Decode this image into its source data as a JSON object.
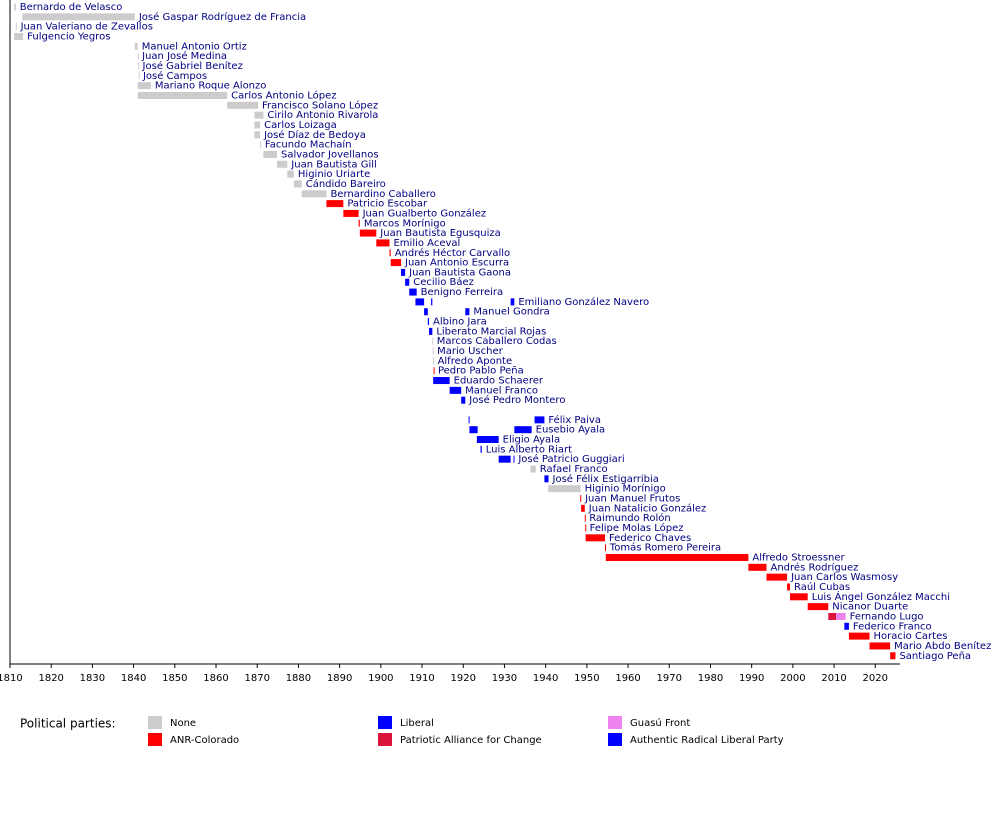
{
  "chart_data": {
    "type": "timeline",
    "xlim": [
      1810,
      2026
    ],
    "xticks": [
      1810,
      1820,
      1830,
      1840,
      1850,
      1860,
      1870,
      1880,
      1890,
      1900,
      1910,
      1920,
      1930,
      1940,
      1950,
      1960,
      1970,
      1980,
      1990,
      2000,
      2010,
      2020
    ],
    "legend_title": "Political parties:",
    "parties": [
      {
        "name": "None",
        "color": "#cccccc"
      },
      {
        "name": "ANR-Colorado",
        "color": "#ff0000"
      },
      {
        "name": "Liberal",
        "color": "#0000ff"
      },
      {
        "name": "Patriotic Alliance for Change",
        "color": "#dc143c"
      },
      {
        "name": "Guasú Front",
        "color": "#ee82ee"
      },
      {
        "name": "Authentic Radical Liberal Party",
        "color": "#0000ff"
      }
    ],
    "rows": [
      {
        "name": "Bernardo de Velasco",
        "terms": [
          {
            "start": 1811.0,
            "end": 1811.4,
            "party": "None"
          }
        ]
      },
      {
        "name": "José Gaspar Rodríguez de Francia",
        "terms": [
          {
            "start": 1813.0,
            "end": 1840.3,
            "party": "None"
          }
        ]
      },
      {
        "name": "Juan Valeriano de Zevallos",
        "terms": [
          {
            "start": 1811.4,
            "end": 1811.6,
            "party": "None"
          }
        ]
      },
      {
        "name": "Fulgencio Yegros",
        "terms": [
          {
            "start": 1811.0,
            "end": 1813.2,
            "party": "None"
          }
        ]
      },
      {
        "name": "Manuel Antonio Ortiz",
        "terms": [
          {
            "start": 1840.3,
            "end": 1841.0,
            "party": "None"
          }
        ]
      },
      {
        "name": "Juan José Medina",
        "terms": [
          {
            "start": 1841.0,
            "end": 1841.1,
            "party": "None"
          }
        ]
      },
      {
        "name": "José Gabriel Benítez",
        "terms": [
          {
            "start": 1841.1,
            "end": 1841.2,
            "party": "None"
          }
        ]
      },
      {
        "name": "José Campos",
        "terms": [
          {
            "start": 1841.2,
            "end": 1841.3,
            "party": "None"
          }
        ]
      },
      {
        "name": "Mariano Roque Alonzo",
        "terms": [
          {
            "start": 1841.0,
            "end": 1844.2,
            "party": "None"
          }
        ]
      },
      {
        "name": "Carlos Antonio López",
        "terms": [
          {
            "start": 1841.0,
            "end": 1862.7,
            "party": "None"
          }
        ]
      },
      {
        "name": "Francisco Solano López",
        "terms": [
          {
            "start": 1862.7,
            "end": 1870.2,
            "party": "None"
          }
        ]
      },
      {
        "name": "Cirilo Antonio Rivarola",
        "terms": [
          {
            "start": 1869.3,
            "end": 1871.5,
            "party": "None"
          }
        ]
      },
      {
        "name": "Carlos Loizaga",
        "terms": [
          {
            "start": 1869.3,
            "end": 1870.7,
            "party": "None"
          }
        ]
      },
      {
        "name": "José Díaz de Bedoya",
        "terms": [
          {
            "start": 1869.3,
            "end": 1870.7,
            "party": "None"
          }
        ]
      },
      {
        "name": "Facundo Machaín",
        "terms": [
          {
            "start": 1870.7,
            "end": 1870.9,
            "party": "None"
          }
        ]
      },
      {
        "name": "Salvador Jovellanos",
        "terms": [
          {
            "start": 1871.5,
            "end": 1874.8,
            "party": "None"
          }
        ]
      },
      {
        "name": "Juan Bautista Gill",
        "terms": [
          {
            "start": 1874.8,
            "end": 1877.3,
            "party": "None"
          }
        ]
      },
      {
        "name": "Higinio Uriarte",
        "terms": [
          {
            "start": 1877.3,
            "end": 1878.9,
            "party": "None"
          }
        ]
      },
      {
        "name": "Cándido Bareiro",
        "terms": [
          {
            "start": 1878.9,
            "end": 1880.8,
            "party": "None"
          }
        ]
      },
      {
        "name": "Bernardino Caballero",
        "terms": [
          {
            "start": 1880.8,
            "end": 1886.8,
            "party": "None"
          }
        ]
      },
      {
        "name": "Patricio Escobar",
        "terms": [
          {
            "start": 1886.8,
            "end": 1890.9,
            "party": "ANR-Colorado"
          }
        ]
      },
      {
        "name": "Juan Gualberto González",
        "terms": [
          {
            "start": 1890.9,
            "end": 1894.6,
            "party": "ANR-Colorado"
          }
        ]
      },
      {
        "name": "Marcos Morínigo",
        "terms": [
          {
            "start": 1894.6,
            "end": 1894.9,
            "party": "ANR-Colorado"
          }
        ]
      },
      {
        "name": "Juan Bautista Egusquiza",
        "terms": [
          {
            "start": 1894.9,
            "end": 1898.9,
            "party": "ANR-Colorado"
          }
        ]
      },
      {
        "name": "Emilio Aceval",
        "terms": [
          {
            "start": 1898.9,
            "end": 1902.1,
            "party": "ANR-Colorado"
          }
        ]
      },
      {
        "name": "Andrés Héctor Carvallo",
        "terms": [
          {
            "start": 1902.1,
            "end": 1902.4,
            "party": "ANR-Colorado"
          }
        ]
      },
      {
        "name": "Juan Antonio Escurra",
        "terms": [
          {
            "start": 1902.4,
            "end": 1904.9,
            "party": "ANR-Colorado"
          }
        ]
      },
      {
        "name": "Juan Bautista Gaona",
        "terms": [
          {
            "start": 1904.9,
            "end": 1905.9,
            "party": "Liberal"
          }
        ]
      },
      {
        "name": "Cecilio Báez",
        "terms": [
          {
            "start": 1905.9,
            "end": 1906.9,
            "party": "Liberal"
          }
        ]
      },
      {
        "name": "Benigno Ferreira",
        "terms": [
          {
            "start": 1906.9,
            "end": 1908.7,
            "party": "Liberal"
          }
        ]
      },
      {
        "name": "Emiliano González Navero",
        "terms": [
          {
            "start": 1908.4,
            "end": 1910.5,
            "party": "Liberal"
          },
          {
            "start": 1912.2,
            "end": 1912.5,
            "party": "Liberal"
          },
          {
            "start": 1931.5,
            "end": 1932.4,
            "party": "Liberal"
          }
        ]
      },
      {
        "name": "Manuel Gondra",
        "terms": [
          {
            "start": 1910.5,
            "end": 1911.4,
            "party": "Liberal"
          },
          {
            "start": 1920.5,
            "end": 1921.5,
            "party": "Liberal"
          }
        ]
      },
      {
        "name": "Albino Jara",
        "terms": [
          {
            "start": 1911.4,
            "end": 1911.7,
            "party": "Liberal"
          }
        ]
      },
      {
        "name": "Liberato Marcial Rojas",
        "terms": [
          {
            "start": 1911.7,
            "end": 1912.5,
            "party": "Liberal"
          }
        ]
      },
      {
        "name": "Marcos Caballero Codas",
        "terms": [
          {
            "start": 1912.5,
            "end": 1912.6,
            "party": "None"
          }
        ]
      },
      {
        "name": "Mario Uscher",
        "terms": [
          {
            "start": 1912.6,
            "end": 1912.7,
            "party": "None"
          }
        ]
      },
      {
        "name": "Alfredo Aponte",
        "terms": [
          {
            "start": 1912.7,
            "end": 1912.8,
            "party": "None"
          }
        ]
      },
      {
        "name": "Pedro Pablo Peña",
        "terms": [
          {
            "start": 1912.8,
            "end": 1912.9,
            "party": "ANR-Colorado"
          }
        ]
      },
      {
        "name": "Eduardo Schaerer",
        "terms": [
          {
            "start": 1912.7,
            "end": 1916.7,
            "party": "Liberal"
          }
        ]
      },
      {
        "name": "Manuel Franco",
        "terms": [
          {
            "start": 1916.7,
            "end": 1919.5,
            "party": "Liberal"
          }
        ]
      },
      {
        "name": "José Pedro Montero",
        "terms": [
          {
            "start": 1919.5,
            "end": 1920.5,
            "party": "Liberal"
          }
        ]
      },
      {
        "name": null,
        "terms": []
      },
      {
        "name": "Félix Paiva",
        "terms": [
          {
            "start": 1921.3,
            "end": 1921.5,
            "party": "Liberal"
          },
          {
            "start": 1937.3,
            "end": 1939.7,
            "party": "Liberal"
          }
        ]
      },
      {
        "name": "Eusebio Ayala",
        "terms": [
          {
            "start": 1921.5,
            "end": 1923.5,
            "party": "Liberal"
          },
          {
            "start": 1932.4,
            "end": 1936.6,
            "party": "Liberal"
          }
        ]
      },
      {
        "name": "Eligio Ayala",
        "terms": [
          {
            "start": 1923.3,
            "end": 1928.6,
            "party": "Liberal"
          }
        ]
      },
      {
        "name": "Luis Alberto Riart",
        "terms": [
          {
            "start": 1924.2,
            "end": 1924.5,
            "party": "Liberal"
          }
        ]
      },
      {
        "name": "José Patricio Guggiari",
        "terms": [
          {
            "start": 1928.6,
            "end": 1931.5,
            "party": "Liberal"
          },
          {
            "start": 1932.2,
            "end": 1932.4,
            "party": "Liberal"
          }
        ]
      },
      {
        "name": "Rafael Franco",
        "terms": [
          {
            "start": 1936.3,
            "end": 1937.6,
            "party": "None"
          }
        ]
      },
      {
        "name": "José Félix Estigarribia",
        "terms": [
          {
            "start": 1939.7,
            "end": 1940.7,
            "party": "Liberal"
          }
        ]
      },
      {
        "name": "Higinio Morínigo",
        "terms": [
          {
            "start": 1940.6,
            "end": 1948.5,
            "party": "None"
          }
        ]
      },
      {
        "name": "Juan Manuel Frutos",
        "terms": [
          {
            "start": 1948.4,
            "end": 1948.6,
            "party": "ANR-Colorado"
          }
        ]
      },
      {
        "name": "Juan Natalicio González",
        "terms": [
          {
            "start": 1948.6,
            "end": 1949.5,
            "party": "ANR-Colorado"
          }
        ]
      },
      {
        "name": "Raimundo Rolón",
        "terms": [
          {
            "start": 1949.5,
            "end": 1949.6,
            "party": "ANR-Colorado"
          }
        ]
      },
      {
        "name": "Felipe Molas López",
        "terms": [
          {
            "start": 1949.6,
            "end": 1949.7,
            "party": "ANR-Colorado"
          }
        ]
      },
      {
        "name": "Federico Chaves",
        "terms": [
          {
            "start": 1949.7,
            "end": 1954.4,
            "party": "ANR-Colorado"
          }
        ]
      },
      {
        "name": "Tomás Romero Pereira",
        "terms": [
          {
            "start": 1954.4,
            "end": 1954.6,
            "party": "ANR-Colorado"
          }
        ]
      },
      {
        "name": "Alfredo Stroessner",
        "terms": [
          {
            "start": 1954.6,
            "end": 1989.2,
            "party": "ANR-Colorado"
          }
        ]
      },
      {
        "name": "Andrés Rodríguez",
        "terms": [
          {
            "start": 1989.2,
            "end": 1993.6,
            "party": "ANR-Colorado"
          }
        ]
      },
      {
        "name": "Juan Carlos Wasmosy",
        "terms": [
          {
            "start": 1993.6,
            "end": 1998.6,
            "party": "ANR-Colorado"
          }
        ]
      },
      {
        "name": "Raúl Cubas",
        "terms": [
          {
            "start": 1998.6,
            "end": 1999.3,
            "party": "ANR-Colorado"
          }
        ]
      },
      {
        "name": "Luis Ángel González Macchi",
        "terms": [
          {
            "start": 1999.3,
            "end": 2003.6,
            "party": "ANR-Colorado"
          }
        ]
      },
      {
        "name": "Nicanor Duarte",
        "terms": [
          {
            "start": 2003.6,
            "end": 2008.6,
            "party": "ANR-Colorado"
          }
        ]
      },
      {
        "name": "Fernando Lugo",
        "terms": [
          {
            "start": 2008.6,
            "end": 2010.5,
            "party": "Patriotic Alliance for Change"
          },
          {
            "start": 2010.5,
            "end": 2012.8,
            "party": "Guasú Front"
          }
        ]
      },
      {
        "name": "Federico Franco",
        "terms": [
          {
            "start": 2012.5,
            "end": 2013.6,
            "party": "Authentic Radical Liberal Party"
          }
        ]
      },
      {
        "name": "Horacio Cartes",
        "terms": [
          {
            "start": 2013.6,
            "end": 2018.6,
            "party": "ANR-Colorado"
          }
        ]
      },
      {
        "name": "Mario Abdo Benítez",
        "terms": [
          {
            "start": 2018.6,
            "end": 2023.6,
            "party": "ANR-Colorado"
          }
        ]
      },
      {
        "name": "Santiago Peña",
        "terms": [
          {
            "start": 2023.6,
            "end": 2024.9,
            "party": "ANR-Colorado"
          }
        ]
      }
    ]
  }
}
